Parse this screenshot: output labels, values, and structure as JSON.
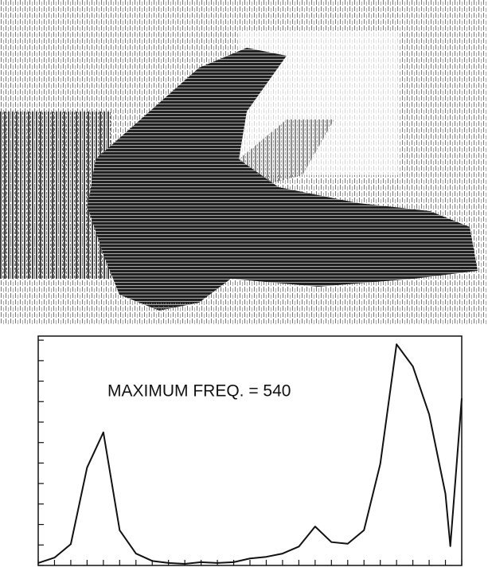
{
  "chart_data": {
    "type": "line",
    "annotation": "MAXIMUM FREQ. = 540",
    "x": [
      0,
      1,
      2,
      3,
      4,
      5,
      6,
      7,
      8,
      9,
      10,
      11,
      12,
      13,
      14,
      15,
      16,
      17,
      18,
      19,
      20,
      21,
      22,
      23,
      24,
      25,
      25.3,
      26
    ],
    "values": [
      6,
      19,
      52,
      239,
      325,
      86,
      29,
      11,
      6,
      4,
      8,
      6,
      8,
      17,
      21,
      29,
      46,
      95,
      57,
      53,
      86,
      248,
      540,
      486,
      369,
      175,
      47,
      408
    ],
    "color": "#111111",
    "xlim": [
      0,
      26
    ],
    "xticks": [
      0,
      1,
      2,
      3,
      4,
      5,
      6,
      7,
      8,
      9,
      10,
      11,
      12,
      13,
      14,
      15,
      16,
      17,
      18,
      19,
      20,
      21,
      22,
      23,
      24,
      25,
      26
    ],
    "ylim": [
      0,
      560
    ],
    "yticks": [
      0,
      50,
      100,
      150,
      200,
      250,
      300,
      350,
      400,
      450,
      500,
      550
    ]
  }
}
